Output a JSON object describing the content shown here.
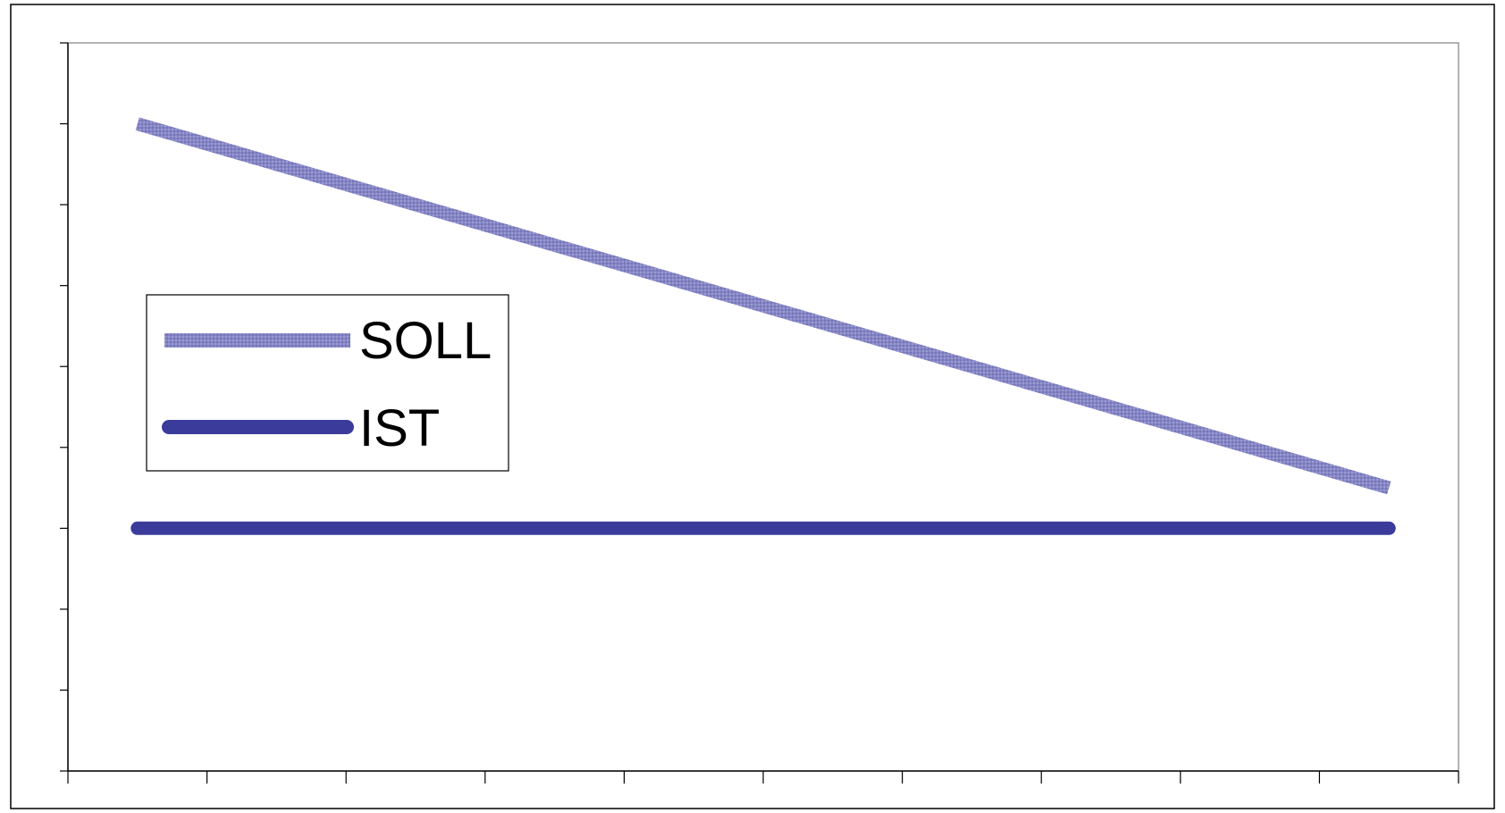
{
  "chart_data": {
    "type": "line",
    "title": "",
    "xlabel": "",
    "ylabel": "",
    "x": [
      1,
      2,
      3,
      4,
      5,
      6,
      7,
      8,
      9,
      10
    ],
    "xlim": [
      0.5,
      10.5
    ],
    "ylim": [
      0,
      9
    ],
    "x_tick_count": 10,
    "y_tick_count": 9,
    "tick_labels_visible": false,
    "grid": false,
    "legend": {
      "placement": "left-middle"
    },
    "series": [
      {
        "name": "SOLL",
        "values": [
          8.0,
          7.5,
          7.0,
          6.5,
          6.0,
          5.5,
          5.0,
          4.5,
          4.0,
          3.5
        ],
        "color": "#8585c5",
        "style": "textured-thick"
      },
      {
        "name": "IST",
        "values": [
          3.0,
          3.0,
          3.0,
          3.0,
          3.0,
          3.0,
          3.0,
          3.0,
          3.0,
          3.0
        ],
        "color": "#3b3b9c",
        "style": "solid-thick"
      }
    ]
  }
}
